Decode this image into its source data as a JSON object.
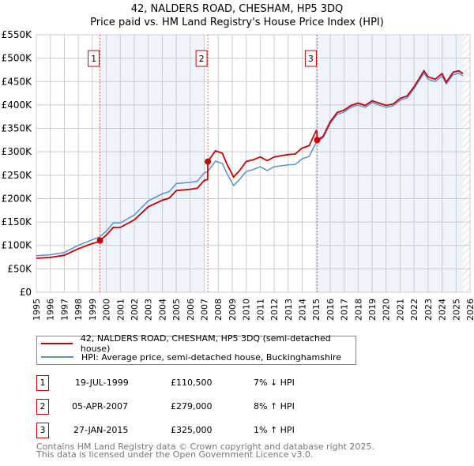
{
  "chart_data": {
    "type": "line",
    "title": "42, NALDERS ROAD, CHESHAM, HP5 3DQ",
    "subtitle": "Price paid vs. HM Land Registry's House Price Index (HPI)",
    "xlim": [
      1995,
      2026
    ],
    "ylim": [
      0,
      550000
    ],
    "y_ticks": [
      0,
      50000,
      100000,
      150000,
      200000,
      250000,
      300000,
      350000,
      400000,
      450000,
      500000,
      550000
    ],
    "y_tick_labels": [
      "£0",
      "£50K",
      "£100K",
      "£150K",
      "£200K",
      "£250K",
      "£300K",
      "£350K",
      "£400K",
      "£450K",
      "£500K",
      "£550K"
    ],
    "x_ticks": [
      1995,
      1996,
      1997,
      1998,
      1999,
      2000,
      2001,
      2002,
      2003,
      2004,
      2005,
      2006,
      2007,
      2008,
      2009,
      2010,
      2011,
      2012,
      2013,
      2014,
      2015,
      2016,
      2017,
      2018,
      2019,
      2020,
      2021,
      2022,
      2023,
      2024,
      2025,
      2026
    ],
    "x_tick_labels": [
      "1995",
      "1996",
      "1997",
      "1998",
      "1999",
      "2000",
      "2001",
      "2002",
      "2003",
      "2004",
      "2005",
      "2006",
      "2007",
      "2008",
      "2009",
      "2010",
      "2011",
      "2012",
      "2013",
      "2014",
      "2015",
      "2016",
      "2017",
      "2018",
      "2019",
      "2020",
      "2021",
      "2022",
      "2023",
      "2024",
      "2025",
      "2026"
    ],
    "grid": true,
    "shaded_ranges": [
      [
        1999.55,
        2007.0
      ],
      [
        2015.07,
        2025.5
      ]
    ],
    "hatched_from": 2025.5,
    "series": [
      {
        "name": "42, NALDERS ROAD, CHESHAM, HP5 3DQ (semi-detached house)",
        "color": "#cc0000",
        "x": [
          1995,
          1996,
          1997,
          1998,
          1999,
          1999.5,
          1999.55,
          2000,
          2000.5,
          2001,
          2002,
          2003,
          2004,
          2004.5,
          2005,
          2006,
          2006.5,
          2007,
          2007.25,
          2007.26,
          2007.8,
          2008.3,
          2008.6,
          2009.1,
          2009.5,
          2010,
          2010.5,
          2011,
          2011.5,
          2012,
          2013,
          2013.5,
          2014,
          2014.5,
          2015,
          2015.06,
          2015.07,
          2015.5,
          2016,
          2016.5,
          2017,
          2017.5,
          2018,
          2018.5,
          2019,
          2019.5,
          2020,
          2020.5,
          2021,
          2021.5,
          2022,
          2022.7,
          2023,
          2023.5,
          2024,
          2024.3,
          2024.8,
          2025.2,
          2025.5
        ],
        "values": [
          72500,
          74400,
          79000,
          93000,
          104000,
          108000,
          110500,
          122000,
          138500,
          138500,
          154500,
          182500,
          196500,
          201000,
          217000,
          220000,
          222000,
          238700,
          241000,
          279000,
          302000,
          297000,
          275000,
          246000,
          259000,
          279000,
          283000,
          289000,
          281000,
          289000,
          294000,
          295000,
          308000,
          313000,
          345000,
          342000,
          325000,
          333000,
          364000,
          384000,
          389000,
          399000,
          404000,
          399000,
          409000,
          404000,
          399000,
          402000,
          414000,
          419000,
          439000,
          473000,
          460000,
          455000,
          467000,
          449000,
          470000,
          473000,
          467000
        ]
      },
      {
        "name": "HPI: Average price, semi-detached house, Buckinghamshire",
        "color": "#5b8fd4",
        "x": [
          1995,
          1996,
          1997,
          1998,
          1999,
          1999.5,
          2000,
          2000.5,
          2001,
          2002,
          2003,
          2004,
          2004.5,
          2005,
          2006,
          2006.5,
          2007,
          2007.26,
          2007.8,
          2008.3,
          2008.6,
          2009.1,
          2009.5,
          2010,
          2010.5,
          2011,
          2011.5,
          2012,
          2013,
          2013.5,
          2014,
          2014.5,
          2015,
          2015.5,
          2016,
          2016.5,
          2017,
          2017.5,
          2018,
          2018.5,
          2019,
          2019.5,
          2020,
          2020.5,
          2021,
          2021.5,
          2022,
          2022.7,
          2023,
          2023.5,
          2024,
          2024.3,
          2024.8,
          2025.2,
          2025.5
        ],
        "values": [
          78000,
          80000,
          85000,
          100000,
          112000,
          118000,
          130000,
          148000,
          148000,
          165000,
          195000,
          210000,
          215000,
          232000,
          235000,
          237000,
          255000,
          258000,
          280000,
          275000,
          255000,
          228000,
          240000,
          258000,
          262000,
          268000,
          260000,
          268000,
          272000,
          273000,
          285000,
          290000,
          320000,
          330000,
          360000,
          380000,
          385000,
          395000,
          400000,
          395000,
          405000,
          400000,
          395000,
          398000,
          410000,
          415000,
          435000,
          468000,
          455000,
          450000,
          462000,
          445000,
          465000,
          468000,
          462000
        ]
      }
    ],
    "sales": [
      {
        "label": "1",
        "x": 1999.55,
        "value": 110500
      },
      {
        "label": "2",
        "x": 2007.26,
        "value": 279000
      },
      {
        "label": "3",
        "x": 2015.07,
        "value": 325000
      }
    ]
  },
  "legend": {
    "property": "42, NALDERS ROAD, CHESHAM, HP5 3DQ (semi-detached house)",
    "hpi": "HPI: Average price, semi-detached house, Buckinghamshire"
  },
  "transactions": [
    {
      "num": "1",
      "date": "19-JUL-1999",
      "price": "£110,500",
      "delta": "7% ↓ HPI"
    },
    {
      "num": "2",
      "date": "05-APR-2007",
      "price": "£279,000",
      "delta": "8% ↑ HPI"
    },
    {
      "num": "3",
      "date": "27-JAN-2015",
      "price": "£325,000",
      "delta": "1% ↑ HPI"
    }
  ],
  "footer": {
    "line1": "Contains HM Land Registry data © Crown copyright and database right 2025.",
    "line2": "This data is licensed under the Open Government Licence v3.0."
  },
  "colors": {
    "property": "#cc0000",
    "hpi": "#5b8fd4",
    "band": "#eef3fc",
    "grid": "#cccccc"
  }
}
